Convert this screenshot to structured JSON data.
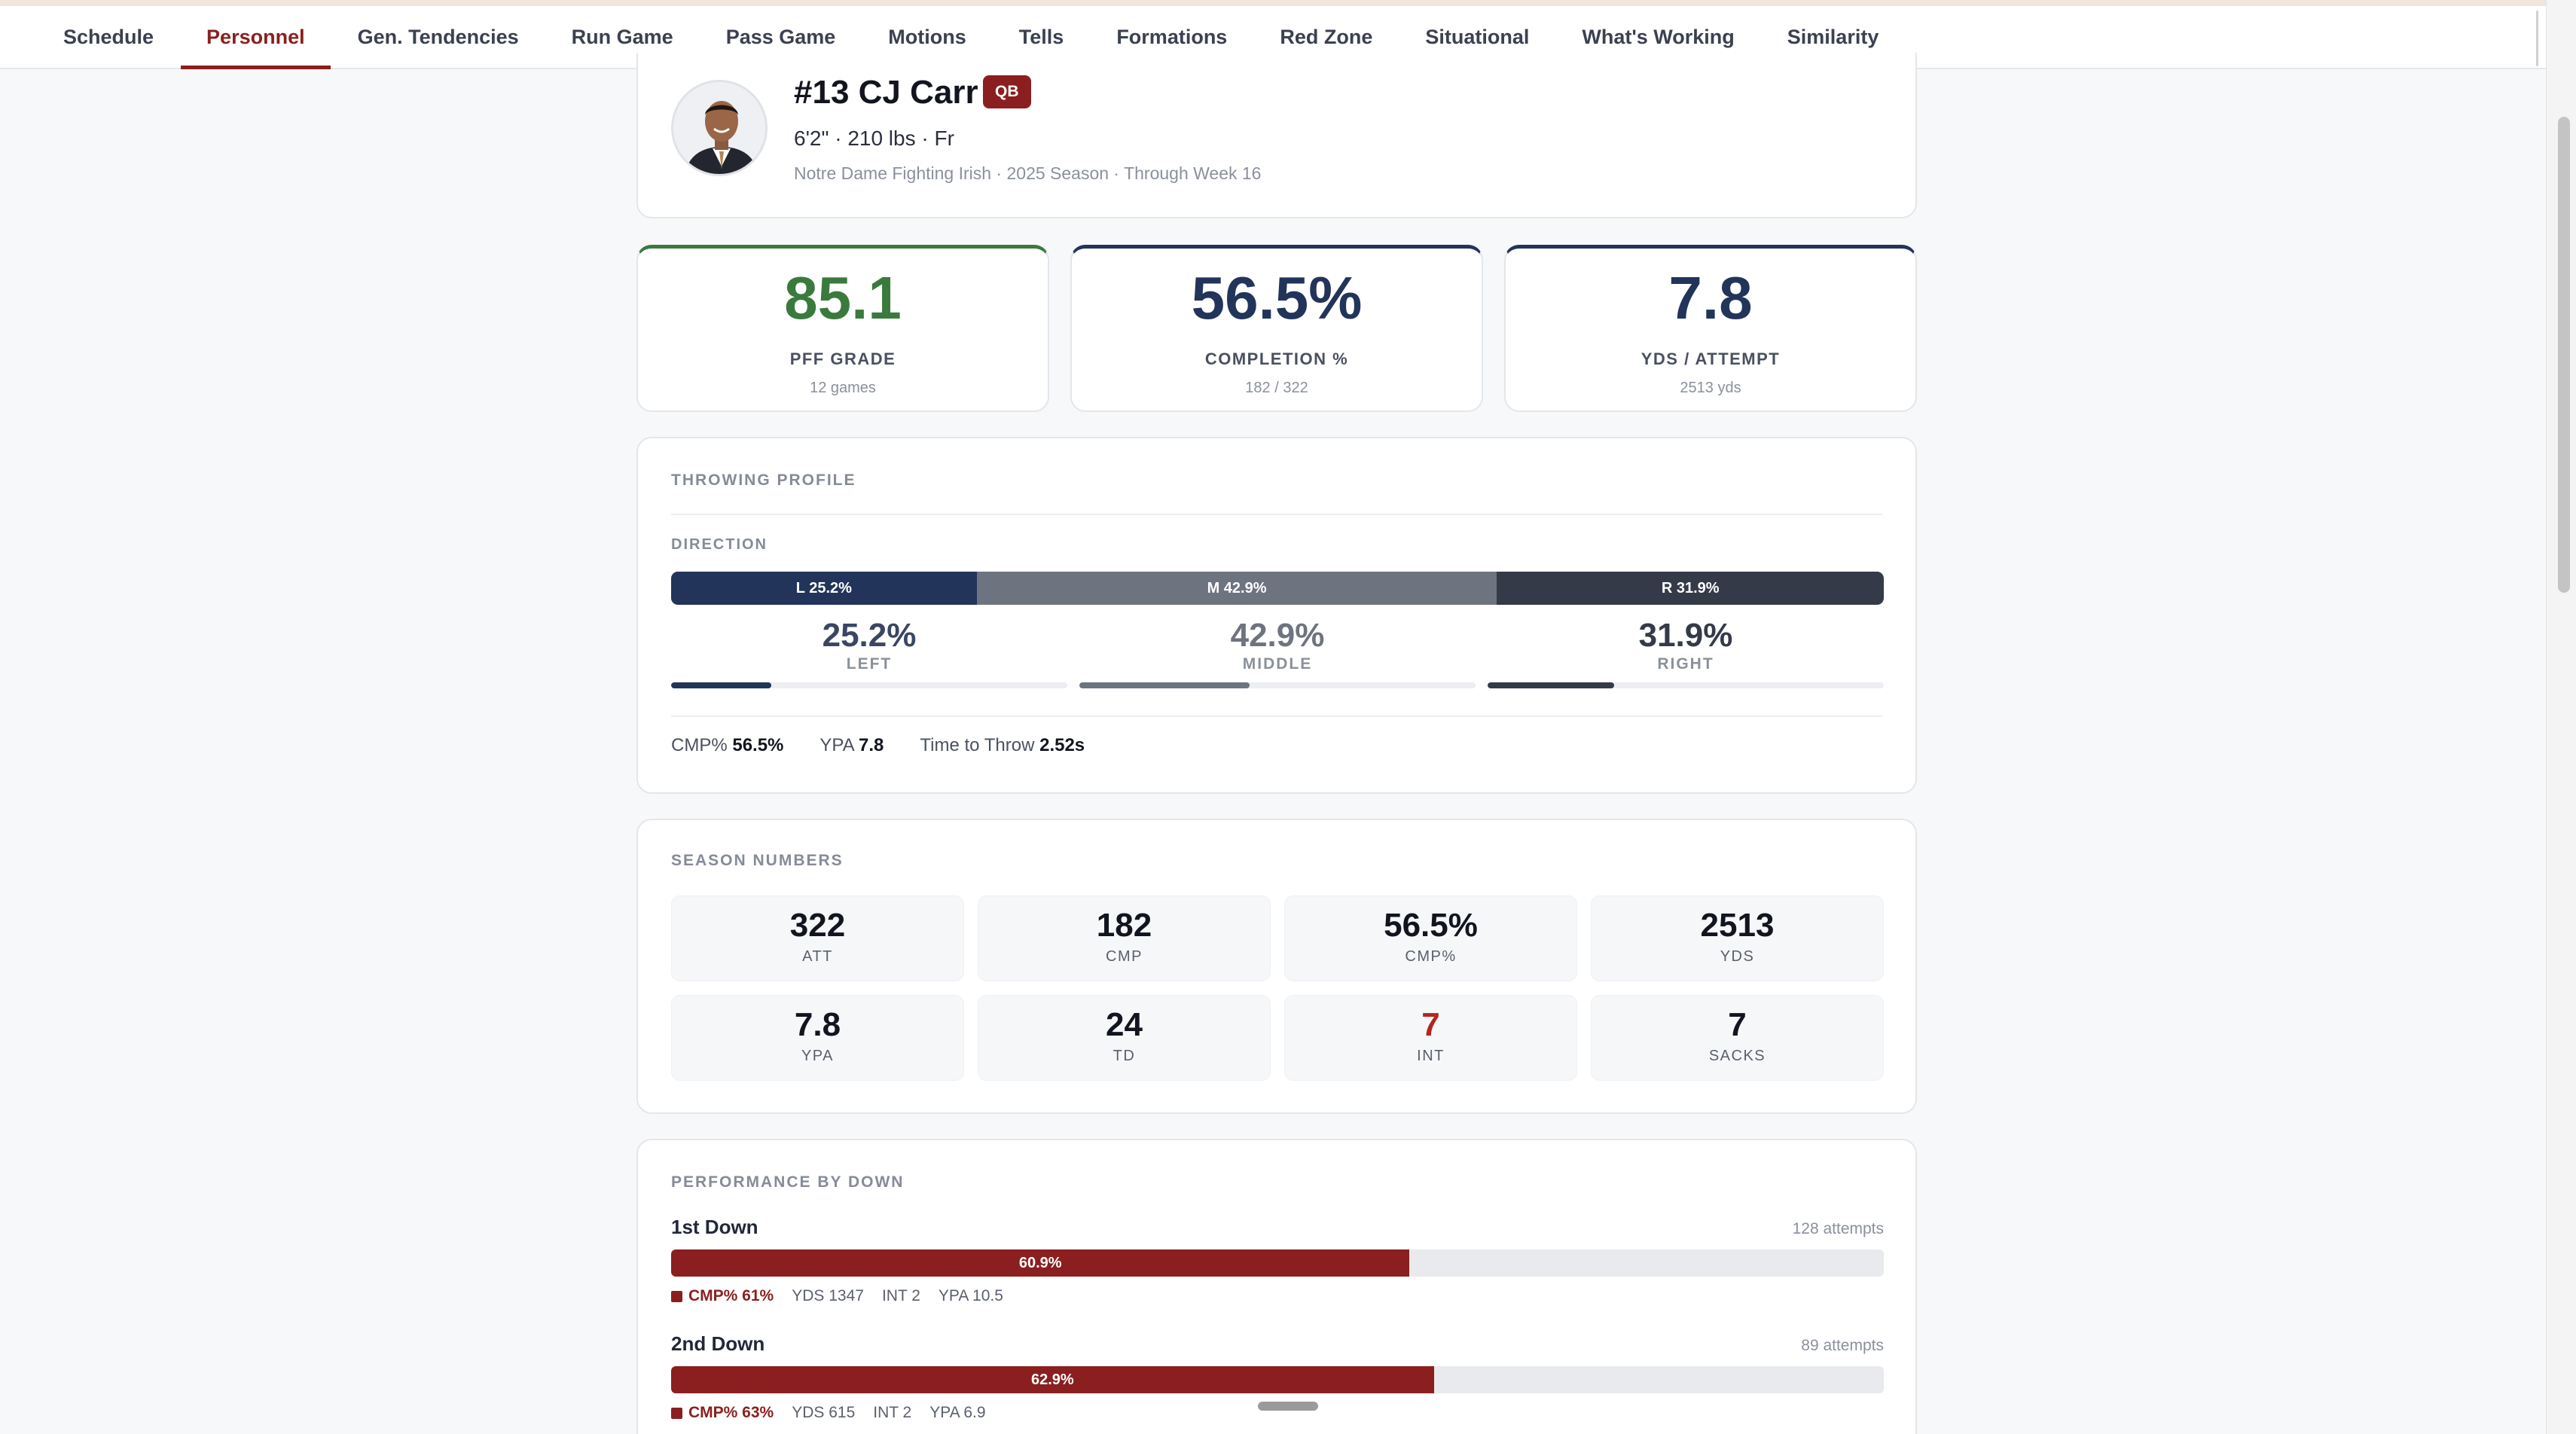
{
  "nav": {
    "tabs": [
      {
        "label": "Schedule",
        "active": false
      },
      {
        "label": "Personnel",
        "active": true
      },
      {
        "label": "Gen. Tendencies",
        "active": false
      },
      {
        "label": "Run Game",
        "active": false
      },
      {
        "label": "Pass Game",
        "active": false
      },
      {
        "label": "Motions",
        "active": false
      },
      {
        "label": "Tells",
        "active": false
      },
      {
        "label": "Formations",
        "active": false
      },
      {
        "label": "Red Zone",
        "active": false
      },
      {
        "label": "Situational",
        "active": false
      },
      {
        "label": "What's Working",
        "active": false
      },
      {
        "label": "Similarity",
        "active": false
      }
    ]
  },
  "player": {
    "name": "#13 CJ Carr",
    "position": "QB",
    "meta": "6'2\" · 210 lbs · Fr",
    "sub": "Notre Dame Fighting Irish · 2025 Season · Through Week 16"
  },
  "stats": [
    {
      "value": "85.1",
      "label": "PFF GRADE",
      "sub": "12 games",
      "color": "#3a7a3d"
    },
    {
      "value": "56.5%",
      "label": "COMPLETION %",
      "sub": "182 / 322",
      "color": "#22345a"
    },
    {
      "value": "7.8",
      "label": "YDS / ATTEMPT",
      "sub": "2513 yds",
      "color": "#22345a"
    }
  ],
  "throwing": {
    "title": "THROWING PROFILE",
    "direction_title": "DIRECTION",
    "directions": [
      {
        "bar_label": "L 25.2%",
        "pct": "25.2%",
        "label": "LEFT",
        "value": 25.2,
        "color": "#22345a",
        "text_color": "#3b4663"
      },
      {
        "bar_label": "M 42.9%",
        "pct": "42.9%",
        "label": "MIDDLE",
        "value": 42.9,
        "color": "#6e7380",
        "text_color": "#6e7380"
      },
      {
        "bar_label": "R 31.9%",
        "pct": "31.9%",
        "label": "RIGHT",
        "value": 31.9,
        "color": "#343a48",
        "text_color": "#343a48"
      }
    ],
    "footer": [
      {
        "label": "CMP%",
        "value": "56.5%"
      },
      {
        "label": "YPA",
        "value": "7.8"
      },
      {
        "label": "Time to Throw",
        "value": "2.52s"
      }
    ]
  },
  "season": {
    "title": "SEASON NUMBERS",
    "cells": [
      {
        "value": "322",
        "label": "ATT",
        "red": false
      },
      {
        "value": "182",
        "label": "CMP",
        "red": false
      },
      {
        "value": "56.5%",
        "label": "CMP%",
        "red": false
      },
      {
        "value": "2513",
        "label": "YDS",
        "red": false
      },
      {
        "value": "7.8",
        "label": "YPA",
        "red": false
      },
      {
        "value": "24",
        "label": "TD",
        "red": false
      },
      {
        "value": "7",
        "label": "INT",
        "red": true
      },
      {
        "value": "7",
        "label": "SACKS",
        "red": false
      }
    ]
  },
  "performance": {
    "title": "PERFORMANCE BY DOWN",
    "downs": [
      {
        "name": "1st Down",
        "attempts": "128 attempts",
        "bar_label": "60.9%",
        "value": 60.9,
        "cmp": "CMP% 61%",
        "yds": "YDS 1347",
        "int": "INT 2",
        "ypa": "YPA 10.5"
      },
      {
        "name": "2nd Down",
        "attempts": "89 attempts",
        "bar_label": "62.9%",
        "value": 62.9,
        "cmp": "CMP% 63%",
        "yds": "YDS 615",
        "int": "INT 2",
        "ypa": "YPA 6.9"
      }
    ]
  }
}
